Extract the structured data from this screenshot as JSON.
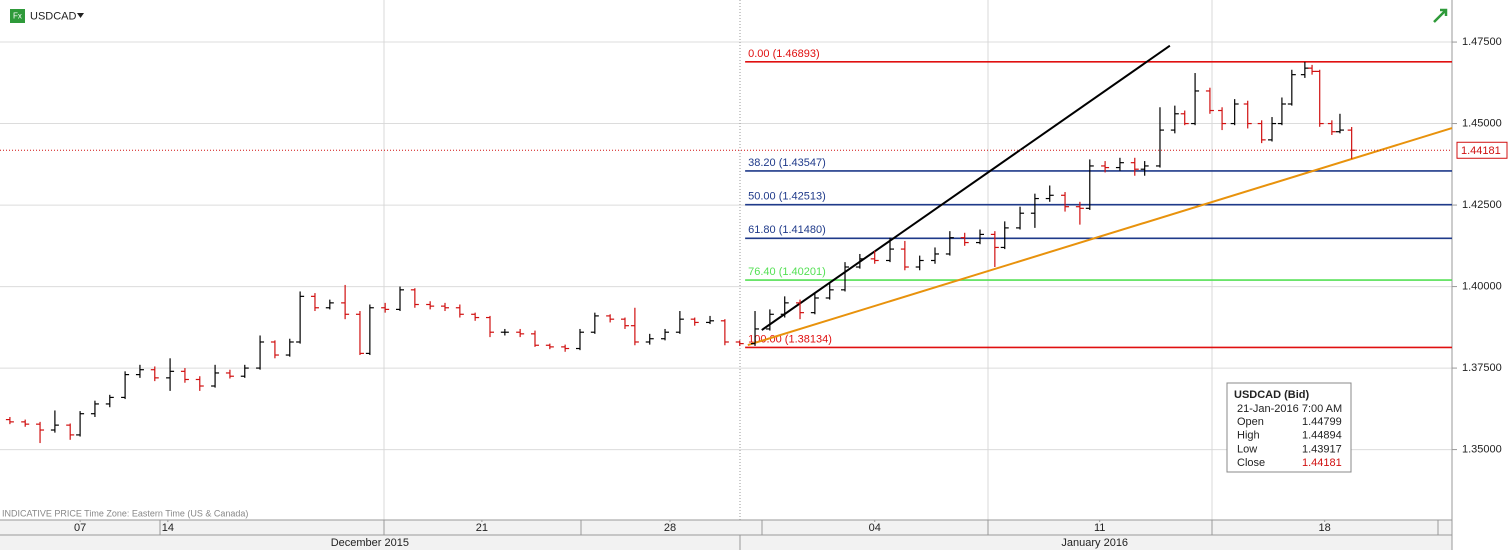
{
  "chart_data": {
    "type": "ohlc",
    "symbol": "USDCAD",
    "footer": "INDICATIVE PRICE   Time Zone: Eastern Time (US & Canada)",
    "up_color": "#000000",
    "down_color": "#d01010",
    "grid": true,
    "xlim": [
      0,
      32.27
    ],
    "ylim": [
      1.3284,
      1.4879
    ],
    "yticks": [
      {
        "value": 1.35,
        "label": "1.35000"
      },
      {
        "value": 1.375,
        "label": "1.37500"
      },
      {
        "value": 1.4,
        "label": "1.40000"
      },
      {
        "value": 1.425,
        "label": "1.42500"
      },
      {
        "value": 1.45,
        "label": "1.45000"
      },
      {
        "value": 1.475,
        "label": "1.47500"
      }
    ],
    "xticks": [
      {
        "value": 1.78,
        "label": "07"
      },
      {
        "value": 3.73,
        "label": "14"
      },
      {
        "value": 10.71,
        "label": "21"
      },
      {
        "value": 14.89,
        "label": "28"
      },
      {
        "value": 19.44,
        "label": "04"
      },
      {
        "value": 24.44,
        "label": "11"
      },
      {
        "value": 29.44,
        "label": "18"
      }
    ],
    "month_ticks": [
      {
        "value": 8.22,
        "label": "December 2015"
      },
      {
        "value": 24.33,
        "label": "January 2016"
      }
    ],
    "last_price": 1.44181,
    "x": [
      0.22,
      0.56,
      0.89,
      1.22,
      1.56,
      1.78,
      2.11,
      2.44,
      2.78,
      3.11,
      3.44,
      3.78,
      4.11,
      4.44,
      4.78,
      5.11,
      5.44,
      5.78,
      6.11,
      6.44,
      6.67,
      7.0,
      7.33,
      7.67,
      8.0,
      8.22,
      8.56,
      8.89,
      9.22,
      9.56,
      9.89,
      10.22,
      10.56,
      10.89,
      11.22,
      11.56,
      11.89,
      12.22,
      12.56,
      12.89,
      13.22,
      13.56,
      13.89,
      14.11,
      14.44,
      14.78,
      15.11,
      15.44,
      15.78,
      16.11,
      16.44,
      16.78,
      17.11,
      17.44,
      17.78,
      18.11,
      18.44,
      18.78,
      19.11,
      19.44,
      19.78,
      20.11,
      20.44,
      20.78,
      21.11,
      21.44,
      21.78,
      22.11,
      22.33,
      22.67,
      23.0,
      23.33,
      23.67,
      24.0,
      24.22,
      24.56,
      24.89,
      25.22,
      25.44,
      25.78,
      26.11,
      26.33,
      26.56,
      26.89,
      27.16,
      27.44,
      27.73,
      28.04,
      28.27,
      28.49,
      28.71,
      29.0,
      29.16,
      29.33,
      29.6,
      29.78,
      30.04
    ],
    "open": [
      1.3592,
      1.3585,
      1.3578,
      1.356,
      1.3575,
      1.3545,
      1.361,
      1.364,
      1.366,
      1.373,
      1.3745,
      1.372,
      1.374,
      1.3715,
      1.3695,
      1.3735,
      1.3725,
      1.375,
      1.383,
      1.379,
      1.383,
      1.397,
      1.3935,
      1.395,
      1.3915,
      1.3795,
      1.3935,
      1.393,
      1.399,
      1.3945,
      1.394,
      1.3935,
      1.3915,
      1.3905,
      1.386,
      1.386,
      1.3855,
      1.382,
      1.3815,
      1.381,
      1.386,
      1.391,
      1.39,
      1.388,
      1.383,
      1.384,
      1.386,
      1.39,
      1.389,
      1.3895,
      1.383,
      1.3825,
      1.387,
      1.3915,
      1.395,
      1.392,
      1.3965,
      1.399,
      1.406,
      1.4085,
      1.408,
      1.4115,
      1.406,
      1.408,
      1.41,
      1.415,
      1.4135,
      1.416,
      1.412,
      1.418,
      1.4225,
      1.427,
      1.428,
      1.4245,
      1.424,
      1.437,
      1.4365,
      1.438,
      1.436,
      1.437,
      1.448,
      1.453,
      1.45,
      1.46,
      1.454,
      1.45,
      1.456,
      1.45,
      1.445,
      1.45,
      1.456,
      1.465,
      1.467,
      1.466,
      1.45,
      1.4475,
      1.44799
    ],
    "high": [
      1.36,
      1.3592,
      1.3585,
      1.362,
      1.358,
      1.3618,
      1.365,
      1.3668,
      1.374,
      1.376,
      1.3755,
      1.378,
      1.375,
      1.3725,
      1.376,
      1.3745,
      1.376,
      1.385,
      1.3835,
      1.384,
      1.3985,
      1.398,
      1.396,
      1.4005,
      1.3925,
      1.3945,
      1.395,
      1.4,
      1.3995,
      1.3955,
      1.395,
      1.3945,
      1.392,
      1.391,
      1.387,
      1.387,
      1.3865,
      1.3825,
      1.3822,
      1.387,
      1.392,
      1.3915,
      1.3905,
      1.3935,
      1.3855,
      1.387,
      1.3925,
      1.3905,
      1.391,
      1.39,
      1.3835,
      1.3925,
      1.393,
      1.397,
      1.396,
      1.398,
      1.401,
      1.4075,
      1.41,
      1.411,
      1.415,
      1.414,
      1.4095,
      1.412,
      1.417,
      1.4165,
      1.4175,
      1.417,
      1.42,
      1.4245,
      1.4285,
      1.431,
      1.429,
      1.426,
      1.439,
      1.4385,
      1.4395,
      1.4395,
      1.4385,
      1.455,
      1.4555,
      1.454,
      1.4655,
      1.461,
      1.455,
      1.4575,
      1.457,
      1.451,
      1.452,
      1.458,
      1.4665,
      1.46893,
      1.468,
      1.4665,
      1.451,
      1.453,
      1.44894
    ],
    "low": [
      1.3578,
      1.357,
      1.352,
      1.3552,
      1.353,
      1.354,
      1.36,
      1.363,
      1.3655,
      1.372,
      1.371,
      1.368,
      1.3705,
      1.368,
      1.369,
      1.3718,
      1.372,
      1.3745,
      1.378,
      1.3785,
      1.3825,
      1.3925,
      1.393,
      1.39,
      1.379,
      1.379,
      1.392,
      1.3925,
      1.3935,
      1.393,
      1.3925,
      1.3905,
      1.3895,
      1.3845,
      1.385,
      1.3845,
      1.3815,
      1.3808,
      1.38,
      1.3805,
      1.3855,
      1.389,
      1.387,
      1.382,
      1.3822,
      1.3835,
      1.3855,
      1.388,
      1.3885,
      1.382,
      1.3818,
      1.3818,
      1.3865,
      1.3905,
      1.39,
      1.3915,
      1.396,
      1.3985,
      1.4055,
      1.407,
      1.4075,
      1.405,
      1.405,
      1.407,
      1.4095,
      1.4125,
      1.413,
      1.406,
      1.4115,
      1.4175,
      1.418,
      1.426,
      1.423,
      1.419,
      1.4235,
      1.435,
      1.4355,
      1.434,
      1.434,
      1.4365,
      1.447,
      1.4495,
      1.4495,
      1.453,
      1.448,
      1.4495,
      1.4485,
      1.444,
      1.4445,
      1.4495,
      1.4555,
      1.464,
      1.465,
      1.449,
      1.4465,
      1.447,
      1.43917
    ],
    "close": [
      1.3585,
      1.3578,
      1.356,
      1.3575,
      1.3545,
      1.361,
      1.364,
      1.366,
      1.373,
      1.3745,
      1.372,
      1.374,
      1.3715,
      1.3695,
      1.3735,
      1.3725,
      1.375,
      1.383,
      1.379,
      1.383,
      1.397,
      1.3935,
      1.395,
      1.3915,
      1.3795,
      1.3935,
      1.393,
      1.399,
      1.3945,
      1.394,
      1.3935,
      1.3915,
      1.3905,
      1.386,
      1.386,
      1.3855,
      1.382,
      1.3815,
      1.381,
      1.386,
      1.391,
      1.39,
      1.388,
      1.383,
      1.384,
      1.386,
      1.39,
      1.389,
      1.3895,
      1.383,
      1.3825,
      1.387,
      1.3915,
      1.395,
      1.392,
      1.3965,
      1.399,
      1.406,
      1.4085,
      1.408,
      1.4115,
      1.406,
      1.408,
      1.41,
      1.415,
      1.4135,
      1.416,
      1.412,
      1.418,
      1.4225,
      1.427,
      1.428,
      1.4245,
      1.424,
      1.437,
      1.4365,
      1.438,
      1.436,
      1.437,
      1.448,
      1.453,
      1.45,
      1.46,
      1.454,
      1.45,
      1.456,
      1.45,
      1.445,
      1.45,
      1.456,
      1.465,
      1.467,
      1.466,
      1.45,
      1.4475,
      1.448,
      1.44181
    ],
    "fib_start_x": 16.56,
    "fib_levels": [
      {
        "label": "0.00 (1.46893)",
        "value": 1.46893,
        "color": "#e01010"
      },
      {
        "label": "38.20 (1.43547)",
        "value": 1.43547,
        "color": "#1f3a8a"
      },
      {
        "label": "50.00 (1.42513)",
        "value": 1.42513,
        "color": "#1f3a8a"
      },
      {
        "label": "61.80 (1.41480)",
        "value": 1.4148,
        "color": "#1f3a8a"
      },
      {
        "label": "76.40 (1.40201)",
        "value": 1.40201,
        "color": "#55e055"
      },
      {
        "label": "100.00 (1.38134)",
        "value": 1.38134,
        "color": "#e01010"
      }
    ],
    "trendlines": [
      {
        "color": "#000000",
        "x": [
          16.93,
          26.0
        ],
        "y": [
          1.38666,
          1.47387
        ]
      },
      {
        "color": "#e8920c",
        "x": [
          16.62,
          32.27
        ],
        "y": [
          1.38206,
          1.44862
        ]
      }
    ],
    "info": {
      "title": "USDCAD (Bid)",
      "date": "21-Jan-2016 7:00 AM",
      "rows": [
        {
          "label": "Open",
          "value": 1.44799
        },
        {
          "label": "High",
          "value": 1.44894
        },
        {
          "label": "Low",
          "value": 1.43917
        },
        {
          "label": "Close",
          "value": 1.44181
        }
      ]
    }
  }
}
